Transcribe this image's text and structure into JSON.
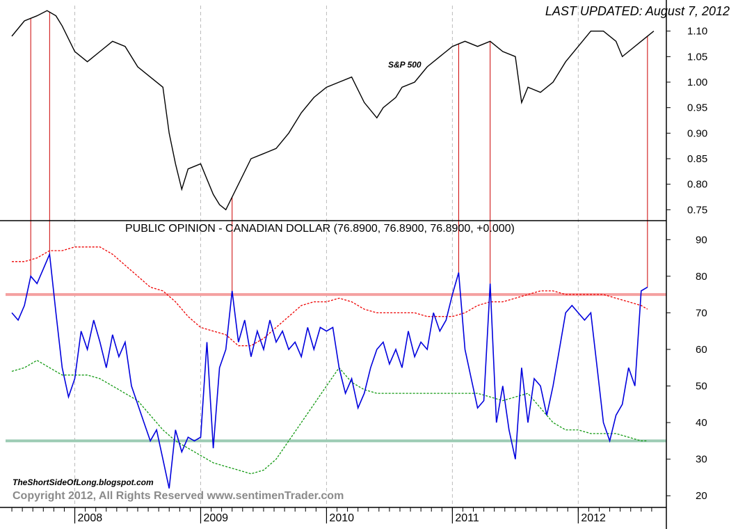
{
  "header": {
    "last_updated": "LAST UPDATED:  August 7, 2012"
  },
  "footer": {
    "blog": "TheShortSideOfLong.blogspot.com",
    "copyright": "Copyright 2012, All Rights Reserved  www.sentimenTrader.com"
  },
  "colors": {
    "sp500_line": "#000000",
    "opinion_line": "#0000dd",
    "upper_band": "#ee0000",
    "lower_band": "#119911",
    "upper_threshold": "#f4a0a0",
    "lower_threshold": "#9ccbb4",
    "signal_lines": "#cc0000",
    "grid": "#bbbbbb"
  },
  "chart_data": [
    {
      "type": "line",
      "title": "S&P 500",
      "x_axis": {
        "labels": [
          "2008",
          "2009",
          "2010",
          "2011",
          "2012"
        ]
      },
      "y_axis": {
        "ticks": [
          "1.10",
          "1.05",
          "1.00",
          "0.95",
          "0.90",
          "0.85",
          "0.80",
          "0.75"
        ],
        "ylim": [
          0.73,
          1.15
        ],
        "side": "right"
      },
      "series": [
        {
          "x": [
            2007.5,
            2007.6,
            2007.7,
            2007.78,
            2007.85,
            2007.9,
            2008.0,
            2008.1,
            2008.2,
            2008.3,
            2008.4,
            2008.5,
            2008.6,
            2008.7,
            2008.75,
            2008.8,
            2008.85,
            2008.9,
            2009.0,
            2009.05,
            2009.1,
            2009.15,
            2009.2,
            2009.3,
            2009.4,
            2009.5,
            2009.6,
            2009.7,
            2009.8,
            2009.9,
            2010.0,
            2010.1,
            2010.2,
            2010.3,
            2010.4,
            2010.45,
            2010.55,
            2010.6,
            2010.7,
            2010.8,
            2010.9,
            2011.0,
            2011.1,
            2011.2,
            2011.3,
            2011.4,
            2011.5,
            2011.55,
            2011.6,
            2011.7,
            2011.8,
            2011.9,
            2012.0,
            2012.1,
            2012.2,
            2012.3,
            2012.35,
            2012.4,
            2012.5,
            2012.6
          ],
          "y": [
            1.09,
            1.12,
            1.13,
            1.14,
            1.13,
            1.11,
            1.06,
            1.04,
            1.06,
            1.08,
            1.07,
            1.03,
            1.01,
            0.99,
            0.9,
            0.84,
            0.79,
            0.83,
            0.84,
            0.81,
            0.78,
            0.76,
            0.75,
            0.8,
            0.85,
            0.86,
            0.87,
            0.9,
            0.94,
            0.97,
            0.99,
            1.0,
            1.01,
            0.96,
            0.93,
            0.95,
            0.97,
            0.99,
            1.0,
            1.03,
            1.05,
            1.07,
            1.08,
            1.07,
            1.08,
            1.06,
            1.05,
            0.96,
            0.99,
            0.98,
            1.0,
            1.04,
            1.07,
            1.1,
            1.1,
            1.08,
            1.05,
            1.06,
            1.08,
            1.1
          ]
        }
      ]
    },
    {
      "type": "line",
      "title": "PUBLIC OPINION - CANADIAN DOLLAR (76.8900, 76.8900, 76.8900, +0.000)",
      "x_axis": {
        "labels": [
          "2008",
          "2009",
          "2010",
          "2011",
          "2012"
        ]
      },
      "y_axis": {
        "ticks": [
          90,
          80,
          70,
          60,
          50,
          40,
          30,
          20
        ],
        "ylim": [
          17,
          95
        ],
        "side": "right"
      },
      "reference_lines": [
        75,
        35
      ],
      "series": [
        {
          "x": [
            2007.5,
            2007.55,
            2007.6,
            2007.65,
            2007.7,
            2007.75,
            2007.8,
            2007.85,
            2007.9,
            2007.95,
            2008.0,
            2008.05,
            2008.1,
            2008.15,
            2008.2,
            2008.25,
            2008.3,
            2008.35,
            2008.4,
            2008.45,
            2008.5,
            2008.55,
            2008.6,
            2008.65,
            2008.7,
            2008.75,
            2008.8,
            2008.85,
            2008.9,
            2008.95,
            2009.0,
            2009.05,
            2009.1,
            2009.15,
            2009.2,
            2009.25,
            2009.3,
            2009.35,
            2009.4,
            2009.45,
            2009.5,
            2009.55,
            2009.6,
            2009.65,
            2009.7,
            2009.75,
            2009.8,
            2009.85,
            2009.9,
            2009.95,
            2010.0,
            2010.05,
            2010.1,
            2010.15,
            2010.2,
            2010.25,
            2010.3,
            2010.35,
            2010.4,
            2010.45,
            2010.5,
            2010.55,
            2010.6,
            2010.65,
            2010.7,
            2010.75,
            2010.8,
            2010.85,
            2010.9,
            2010.95,
            2011.0,
            2011.05,
            2011.1,
            2011.15,
            2011.2,
            2011.25,
            2011.3,
            2011.35,
            2011.4,
            2011.45,
            2011.5,
            2011.55,
            2011.6,
            2011.65,
            2011.7,
            2011.75,
            2011.8,
            2011.85,
            2011.9,
            2011.95,
            2012.0,
            2012.05,
            2012.1,
            2012.15,
            2012.2,
            2012.25,
            2012.3,
            2012.35,
            2012.4,
            2012.45,
            2012.5,
            2012.55
          ],
          "y": [
            70,
            68,
            72,
            80,
            78,
            82,
            86,
            70,
            55,
            47,
            52,
            65,
            60,
            68,
            62,
            55,
            64,
            58,
            62,
            50,
            45,
            40,
            35,
            38,
            30,
            22,
            38,
            32,
            36,
            35,
            36,
            62,
            33,
            55,
            60,
            76,
            62,
            68,
            58,
            65,
            60,
            68,
            62,
            65,
            60,
            62,
            58,
            66,
            60,
            66,
            65,
            66,
            55,
            48,
            52,
            44,
            48,
            55,
            60,
            62,
            56,
            60,
            55,
            65,
            58,
            62,
            60,
            70,
            65,
            68,
            75,
            81,
            60,
            52,
            44,
            46,
            78,
            40,
            50,
            38,
            30,
            55,
            40,
            52,
            50,
            42,
            50,
            60,
            70,
            72,
            70,
            68,
            70,
            55,
            40,
            35,
            42,
            45,
            55,
            50,
            76,
            77
          ]
        },
        {
          "name": "upper band",
          "x": [
            2007.5,
            2007.6,
            2007.7,
            2007.8,
            2007.9,
            2008.0,
            2008.1,
            2008.2,
            2008.3,
            2008.4,
            2008.5,
            2008.6,
            2008.7,
            2008.8,
            2008.9,
            2009.0,
            2009.1,
            2009.2,
            2009.3,
            2009.4,
            2009.5,
            2009.6,
            2009.7,
            2009.8,
            2009.9,
            2010.0,
            2010.1,
            2010.2,
            2010.3,
            2010.4,
            2010.5,
            2010.6,
            2010.7,
            2010.8,
            2010.9,
            2011.0,
            2011.1,
            2011.2,
            2011.3,
            2011.4,
            2011.5,
            2011.6,
            2011.7,
            2011.8,
            2011.9,
            2012.0,
            2012.1,
            2012.2,
            2012.3,
            2012.4,
            2012.5,
            2012.55
          ],
          "y": [
            84,
            84,
            85,
            87,
            87,
            88,
            88,
            88,
            86,
            83,
            80,
            77,
            76,
            73,
            69,
            66,
            65,
            64,
            61,
            61,
            63,
            66,
            69,
            72,
            73,
            73,
            74,
            73,
            71,
            70,
            70,
            70,
            70,
            69,
            69,
            69,
            70,
            72,
            73,
            73,
            74,
            75,
            76,
            76,
            75,
            75,
            75,
            75,
            74,
            73,
            72,
            71
          ]
        },
        {
          "name": "lower band",
          "x": [
            2007.5,
            2007.6,
            2007.7,
            2007.8,
            2007.9,
            2008.0,
            2008.1,
            2008.2,
            2008.3,
            2008.4,
            2008.5,
            2008.6,
            2008.7,
            2008.8,
            2008.9,
            2009.0,
            2009.1,
            2009.2,
            2009.3,
            2009.4,
            2009.5,
            2009.6,
            2009.7,
            2009.8,
            2009.9,
            2010.0,
            2010.1,
            2010.2,
            2010.3,
            2010.4,
            2010.5,
            2010.6,
            2010.7,
            2010.8,
            2010.9,
            2011.0,
            2011.1,
            2011.2,
            2011.3,
            2011.4,
            2011.5,
            2011.6,
            2011.7,
            2011.8,
            2011.9,
            2012.0,
            2012.1,
            2012.2,
            2012.3,
            2012.4,
            2012.5,
            2012.55
          ],
          "y": [
            54,
            55,
            57,
            55,
            53,
            53,
            53,
            52,
            50,
            48,
            46,
            42,
            38,
            35,
            33,
            31,
            29,
            28,
            27,
            26,
            27,
            30,
            35,
            40,
            45,
            50,
            55,
            51,
            49,
            48,
            48,
            48,
            48,
            48,
            48,
            48,
            48,
            48,
            47,
            46,
            47,
            48,
            44,
            40,
            38,
            38,
            37,
            37,
            37,
            36,
            35,
            35
          ]
        }
      ]
    }
  ]
}
